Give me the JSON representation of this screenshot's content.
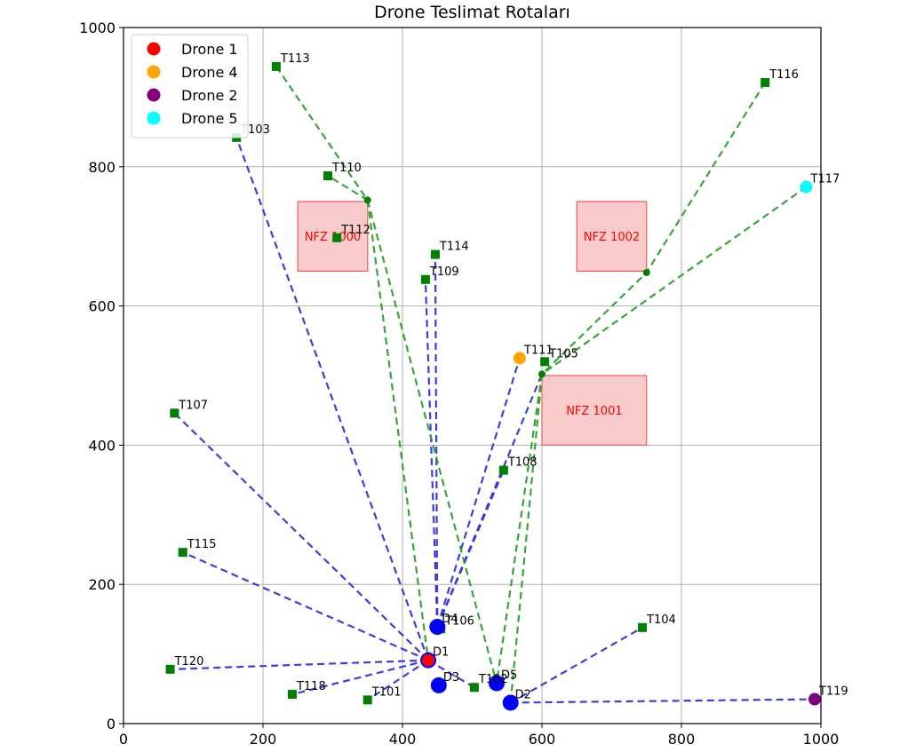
{
  "chart_data": {
    "type": "scatter",
    "title": "Drone Teslimat Rotaları",
    "xlabel": "",
    "ylabel": "",
    "xlim": [
      0,
      1000
    ],
    "ylim": [
      0,
      1000
    ],
    "xticks": [
      0,
      200,
      400,
      600,
      800,
      1000
    ],
    "yticks": [
      0,
      200,
      400,
      600,
      800,
      1000
    ],
    "grid": true,
    "legend_position": "top-left",
    "legend": [
      {
        "name": "Drone 1",
        "color": "#ff0000"
      },
      {
        "name": "Drone 4",
        "color": "#ffa500"
      },
      {
        "name": "Drone 2",
        "color": "#800080"
      },
      {
        "name": "Drone 5",
        "color": "#00ffff"
      }
    ],
    "colors": {
      "delivery": "#008000",
      "depot": "#0000ff",
      "blue_route": "#3333dd",
      "green_route": "#2ca02c",
      "nfz_fill": "#f7a8a8",
      "nfz_edge": "#ef5b5b",
      "nfz_text": "#ff0000"
    },
    "no_fly_zones": [
      {
        "label": "NFZ 1000",
        "x": [
          250,
          350
        ],
        "y": [
          650,
          750
        ],
        "label_at": [
          300,
          700
        ]
      },
      {
        "label": "NFZ 1001",
        "x": [
          600,
          750
        ],
        "y": [
          400,
          500
        ],
        "label_at": [
          675,
          450
        ]
      },
      {
        "label": "NFZ 1002",
        "x": [
          650,
          750
        ],
        "y": [
          650,
          750
        ],
        "label_at": [
          700,
          700
        ]
      }
    ],
    "depots": [
      {
        "label": "D1",
        "x": 437,
        "y": 91
      },
      {
        "label": "D2",
        "x": 555,
        "y": 30
      },
      {
        "label": "D3",
        "x": 452,
        "y": 55
      },
      {
        "label": "D4",
        "x": 450,
        "y": 139
      },
      {
        "label": "D5",
        "x": 535,
        "y": 58
      }
    ],
    "drones": [
      {
        "name": "Drone 1",
        "x": 437,
        "y": 91,
        "color": "#ff0000"
      },
      {
        "name": "Drone 4",
        "x": 568,
        "y": 525,
        "color": "#ffa500"
      },
      {
        "name": "Drone 2",
        "x": 991,
        "y": 35,
        "color": "#800080"
      },
      {
        "name": "Drone 5",
        "x": 979,
        "y": 771,
        "color": "#00ffff"
      }
    ],
    "deliveries": [
      {
        "label": "T101",
        "x": 350,
        "y": 34
      },
      {
        "label": "T103",
        "x": 162,
        "y": 842
      },
      {
        "label": "T104",
        "x": 744,
        "y": 138
      },
      {
        "label": "T105",
        "x": 604,
        "y": 520
      },
      {
        "label": "T106",
        "x": 455,
        "y": 136
      },
      {
        "label": "T107",
        "x": 73,
        "y": 446
      },
      {
        "label": "T108",
        "x": 545,
        "y": 364
      },
      {
        "label": "T109",
        "x": 433,
        "y": 638
      },
      {
        "label": "T110",
        "x": 293,
        "y": 787
      },
      {
        "label": "T111",
        "x": 568,
        "y": 525
      },
      {
        "label": "T112",
        "x": 306,
        "y": 698
      },
      {
        "label": "T113",
        "x": 219,
        "y": 944
      },
      {
        "label": "T114",
        "x": 447,
        "y": 674
      },
      {
        "label": "T115",
        "x": 85,
        "y": 246
      },
      {
        "label": "T116",
        "x": 920,
        "y": 921
      },
      {
        "label": "T117",
        "x": 979,
        "y": 771
      },
      {
        "label": "T118",
        "x": 242,
        "y": 42
      },
      {
        "label": "T119",
        "x": 991,
        "y": 35
      },
      {
        "label": "T120",
        "x": 67,
        "y": 78
      },
      {
        "label": "T102",
        "x": 503,
        "y": 52
      }
    ],
    "waypoints": [
      {
        "x": 350,
        "y": 752
      },
      {
        "x": 750,
        "y": 648
      },
      {
        "x": 600,
        "y": 502
      }
    ],
    "routes_blue": [
      [
        [
          437,
          91
        ],
        [
          162,
          842
        ]
      ],
      [
        [
          437,
          91
        ],
        [
          73,
          446
        ]
      ],
      [
        [
          437,
          91
        ],
        [
          85,
          246
        ]
      ],
      [
        [
          437,
          91
        ],
        [
          67,
          78
        ]
      ],
      [
        [
          437,
          91
        ],
        [
          242,
          42
        ]
      ],
      [
        [
          437,
          91
        ],
        [
          350,
          34
        ]
      ],
      [
        [
          437,
          91
        ],
        [
          503,
          52
        ]
      ],
      [
        [
          450,
          139
        ],
        [
          433,
          638
        ]
      ],
      [
        [
          450,
          139
        ],
        [
          447,
          674
        ]
      ],
      [
        [
          450,
          139
        ],
        [
          568,
          525
        ]
      ],
      [
        [
          450,
          139
        ],
        [
          545,
          364
        ]
      ],
      [
        [
          450,
          139
        ],
        [
          600,
          502
        ]
      ],
      [
        [
          555,
          30
        ],
        [
          744,
          138
        ]
      ],
      [
        [
          555,
          30
        ],
        [
          991,
          35
        ]
      ]
    ],
    "routes_green": [
      [
        [
          219,
          944
        ],
        [
          350,
          752
        ],
        [
          293,
          787
        ]
      ],
      [
        [
          350,
          752
        ],
        [
          437,
          91
        ]
      ],
      [
        [
          350,
          752
        ],
        [
          535,
          58
        ]
      ],
      [
        [
          920,
          921
        ],
        [
          750,
          648
        ],
        [
          600,
          502
        ],
        [
          555,
          30
        ]
      ],
      [
        [
          979,
          771
        ],
        [
          600,
          502
        ],
        [
          535,
          58
        ]
      ]
    ]
  }
}
